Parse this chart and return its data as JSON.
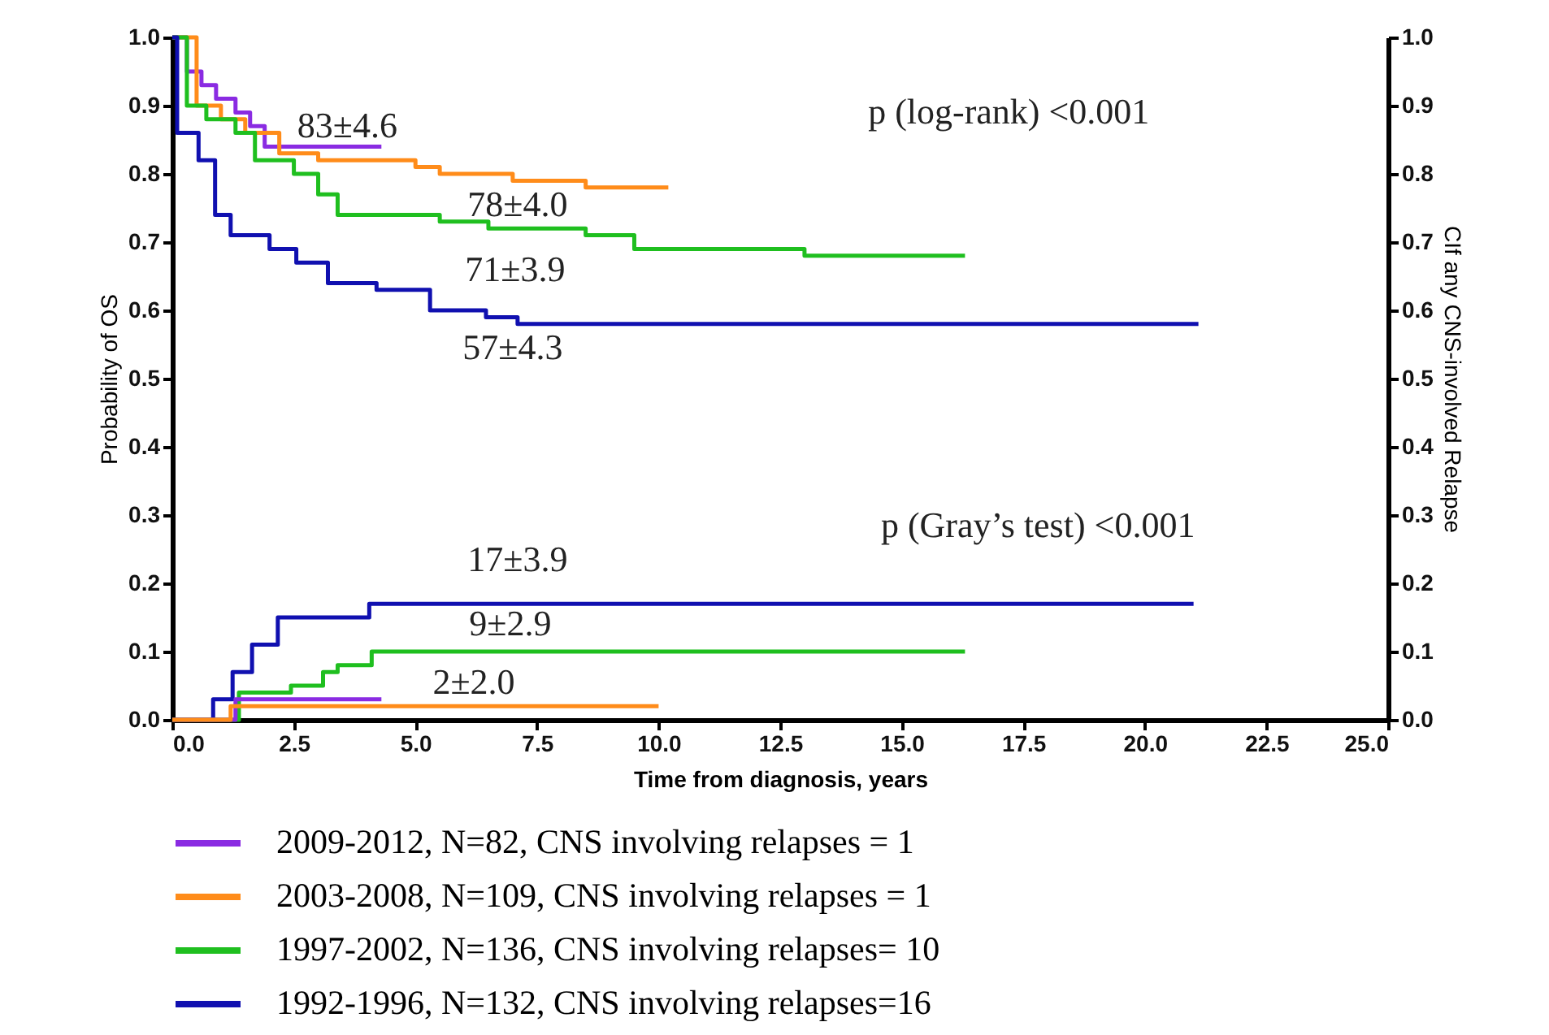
{
  "chart_data": {
    "type": "step",
    "xlabel": "Time from diagnosis, years",
    "ylabel": "Probability of OS",
    "y2label": "CIf any CNS-involved Relapse",
    "xlim": [
      0,
      25
    ],
    "xticks": [
      {
        "value": 0,
        "label": "0.0"
      },
      2.5,
      {
        "value": 5,
        "label": "5.0"
      },
      7.5,
      {
        "value": 10,
        "label": "10.0"
      },
      12.5,
      {
        "value": 15,
        "label": "15.0"
      },
      17.5,
      {
        "value": 20,
        "label": "20.0"
      },
      22.5,
      {
        "value": 25,
        "label": "25.0"
      }
    ],
    "ylim": [
      0,
      1
    ],
    "yticks": [
      {
        "value": 0,
        "label": "0.0"
      },
      0.1,
      0.2,
      0.3,
      0.4,
      0.5,
      0.6,
      0.7,
      0.8,
      0.9,
      {
        "value": 1,
        "label": "1.0"
      }
    ],
    "y2lim": [
      0,
      1
    ],
    "y2ticks": [
      {
        "value": 0,
        "label": "0.0"
      },
      0.1,
      0.2,
      0.3,
      0.4,
      0.5,
      0.6,
      0.7,
      0.8,
      0.9,
      {
        "value": 1,
        "label": "1.0"
      }
    ],
    "legend": "bottom",
    "series": [
      {
        "name": "2009-2012, N=82, CNS involving relapses = 1",
        "color": "#8a2be2",
        "x": [
          0,
          0.3,
          0.6,
          0.9,
          1.3,
          1.6,
          1.9,
          4.3
        ],
        "values": [
          1,
          0.95,
          0.93,
          0.91,
          0.89,
          0.87,
          0.84,
          0.84
        ]
      },
      {
        "name": "2003-2008, N=109, CNS involving relapses = 1",
        "color": "#ff8c1a",
        "x": [
          0,
          0.5,
          1,
          1.5,
          2.2,
          3,
          5,
          5.5,
          7,
          8.5,
          10.2
        ],
        "values": [
          1,
          0.9,
          0.88,
          0.86,
          0.83,
          0.82,
          0.81,
          0.8,
          0.79,
          0.78,
          0.78
        ]
      },
      {
        "name": "1997-2002, N=136, CNS involving relapses= 10",
        "color": "#1fbf1f",
        "x": [
          0,
          0.3,
          0.7,
          1.3,
          1.7,
          2.5,
          3,
          3.4,
          5,
          5.5,
          6.5,
          8.5,
          9.5,
          13,
          16.3
        ],
        "values": [
          1,
          0.9,
          0.88,
          0.86,
          0.82,
          0.8,
          0.77,
          0.74,
          0.74,
          0.73,
          0.72,
          0.71,
          0.69,
          0.68,
          0.68
        ]
      },
      {
        "name": "1992-1996, N=132, CNS involving relapses=16",
        "color": "#1010b0",
        "x": [
          0,
          0.1,
          0.54,
          0.88,
          1.2,
          2,
          2.55,
          3.2,
          4.2,
          5.3,
          6.45,
          7.1,
          21.1
        ],
        "values": [
          1,
          0.86,
          0.82,
          0.74,
          0.71,
          0.69,
          0.67,
          0.64,
          0.63,
          0.6,
          0.59,
          0.58,
          0.58
        ]
      },
      {
        "color": "#1010b0",
        "axis": "y2",
        "x": [
          0,
          0.84,
          1.24,
          1.64,
          2.17,
          3.1,
          4.05,
          21
        ],
        "values": [
          0,
          0.03,
          0.07,
          0.11,
          0.15,
          0.15,
          0.17,
          0.17
        ]
      },
      {
        "color": "#1fbf1f",
        "axis": "y2",
        "x": [
          0,
          1.37,
          2.44,
          3.1,
          3.4,
          4.1,
          16.3
        ],
        "values": [
          0,
          0.04,
          0.05,
          0.07,
          0.08,
          0.1,
          0.1
        ]
      },
      {
        "color": "#8a2be2",
        "axis": "y2",
        "x": [
          0,
          0.6,
          1.3,
          2.5,
          3.5,
          4.3
        ],
        "values": [
          0,
          0,
          0.03,
          0.03,
          0.03,
          0.03
        ]
      },
      {
        "color": "#ff8c1a",
        "axis": "y2",
        "x": [
          0,
          0.6,
          1.2,
          3,
          5,
          7.5,
          10
        ],
        "values": [
          0,
          0,
          0.02,
          0.02,
          0.02,
          0.02,
          0.02
        ]
      }
    ],
    "annotations": [
      "83±4.6",
      "78±4.0",
      "71±3.9",
      "57±4.3",
      "17±3.9",
      "9±2.9",
      "2±2.0",
      "p (log-rank) <0.001",
      "p (Gray’s test) <0.001"
    ]
  }
}
